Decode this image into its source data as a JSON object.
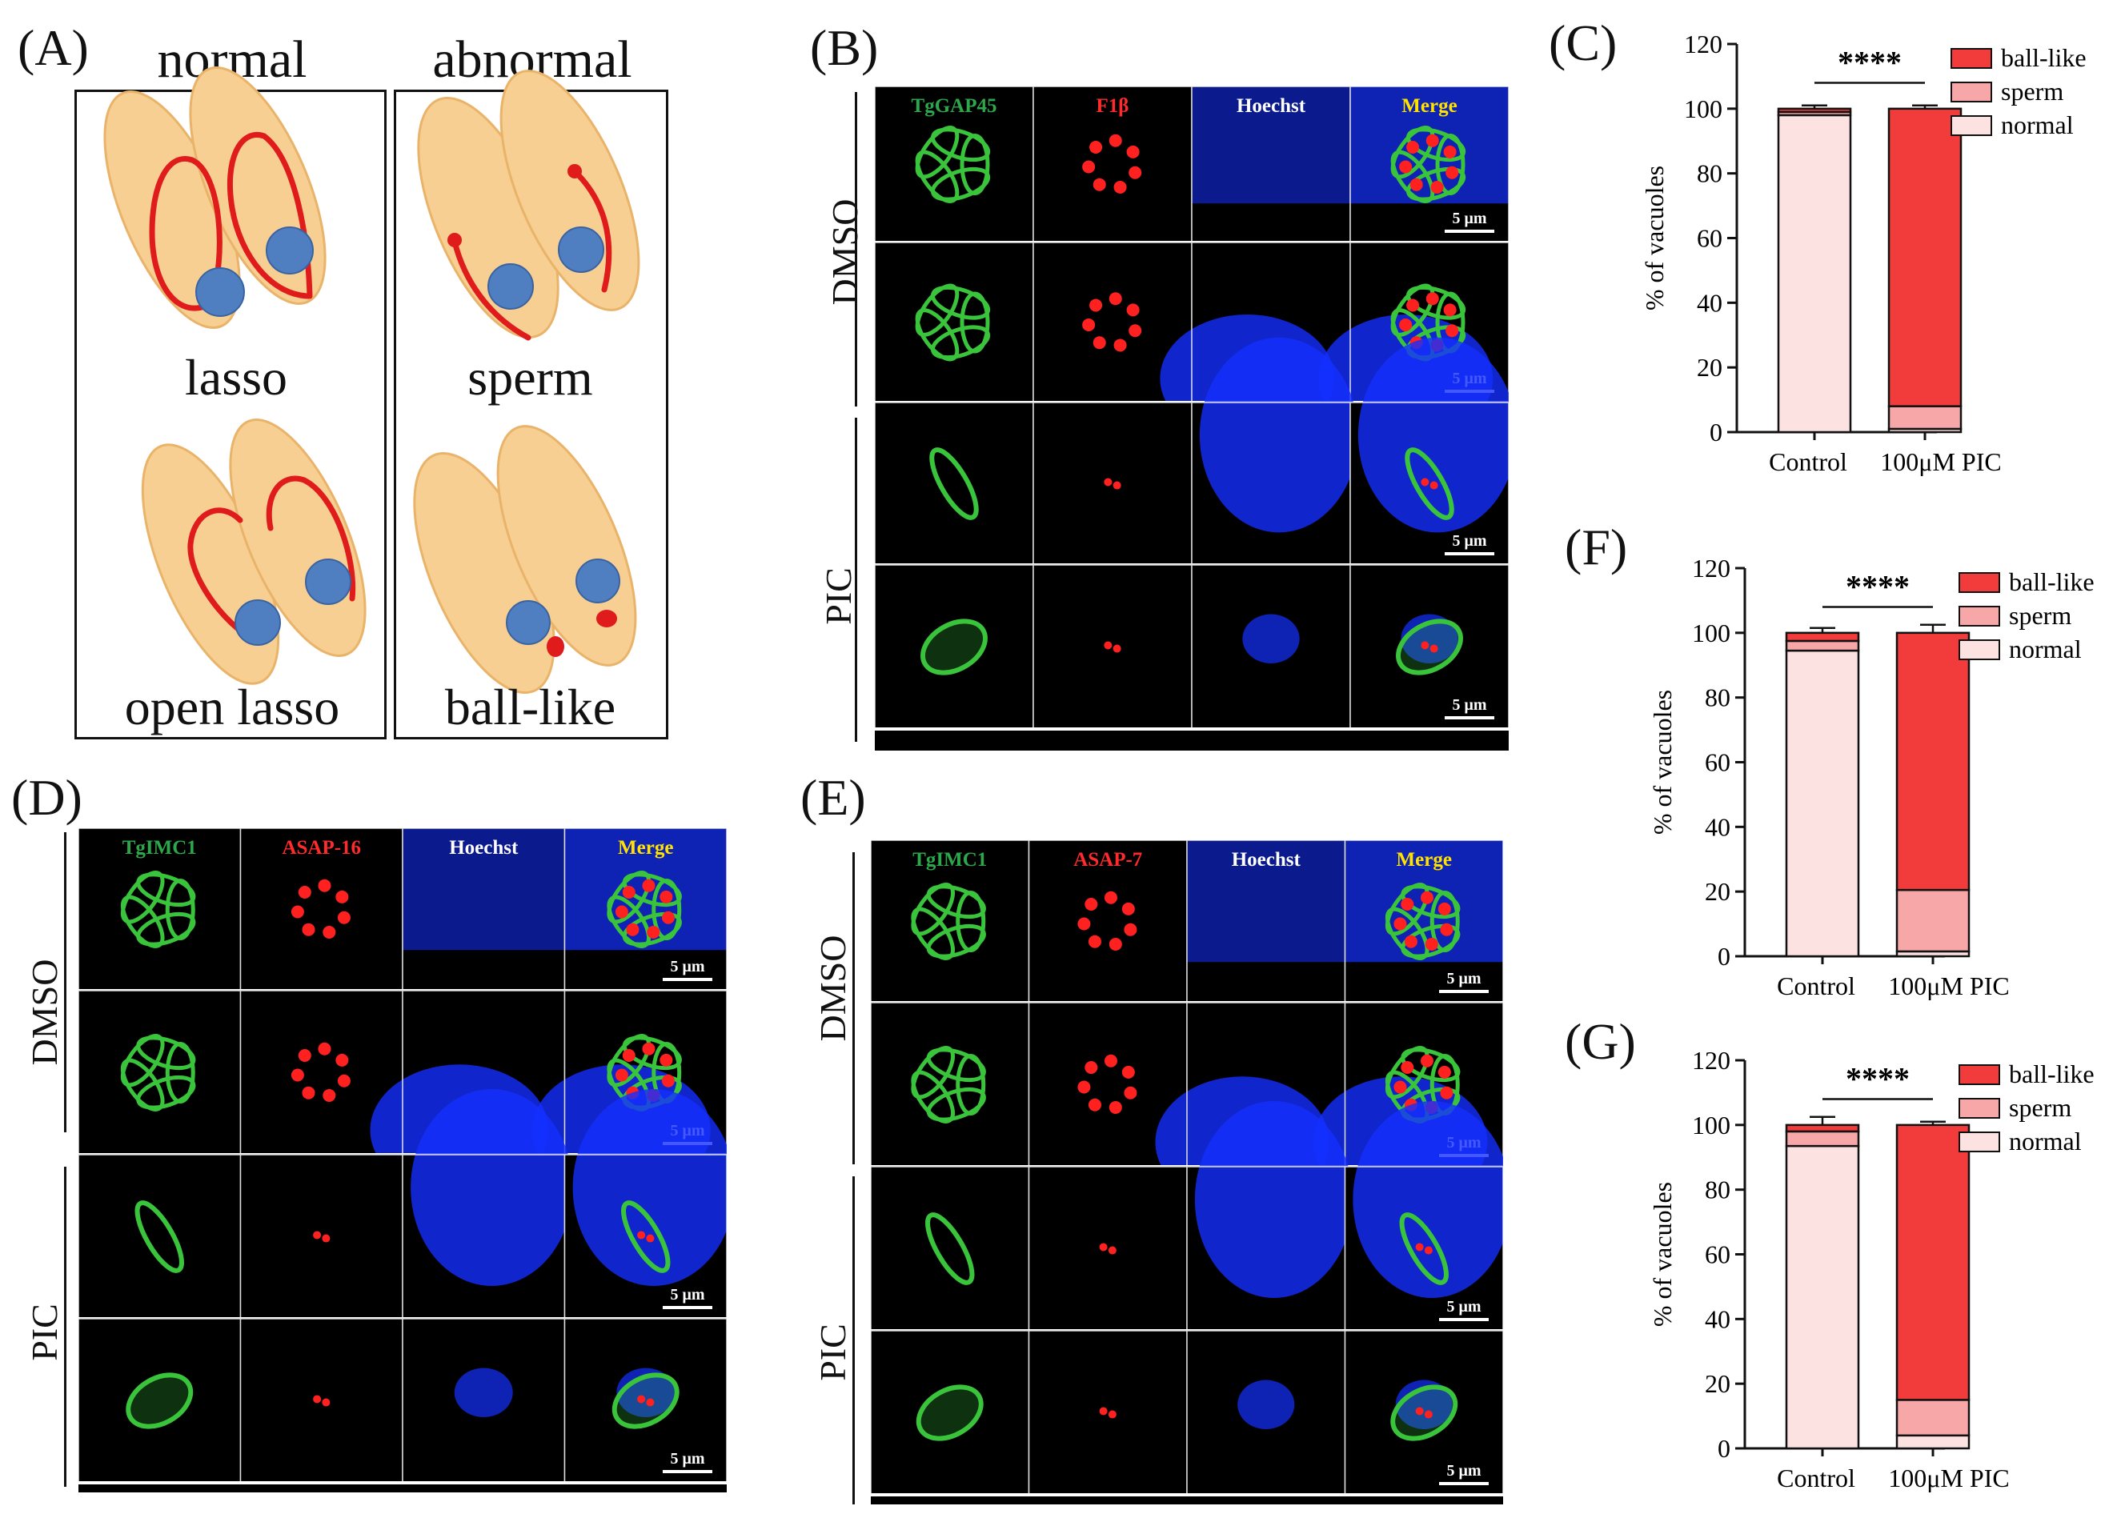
{
  "figure": {
    "panel_labels": {
      "A": "(A)",
      "B": "(B)",
      "C": "(C)",
      "D": "(D)",
      "E": "(E)",
      "F": "(F)",
      "G": "(G)"
    },
    "panel_a": {
      "headers": [
        "normal",
        "abnormal"
      ],
      "captions": [
        "lasso",
        "sperm",
        "open lasso",
        "ball-like"
      ]
    },
    "panel_b": {
      "channels": [
        "TgGAP45",
        "F1β",
        "Hoechst",
        "Merge"
      ],
      "groups": [
        "DMSO",
        "PIC"
      ],
      "scale": "5 μm"
    },
    "panel_d": {
      "channels": [
        "TgIMC1",
        "ASAP-16",
        "Hoechst",
        "Merge"
      ],
      "groups": [
        "DMSO",
        "PIC"
      ],
      "scale": "5 μm"
    },
    "panel_e": {
      "channels": [
        "TgIMC1",
        "ASAP-7",
        "Hoechst",
        "Merge"
      ],
      "groups": [
        "DMSO",
        "PIC"
      ],
      "scale": "5 μm"
    },
    "colors": {
      "cell": "#f7cf92",
      "cell_edge": "#e9b46a",
      "marker": "#e01b1b",
      "nucleus": "#4f7fc0",
      "green": "#39c43b",
      "red": "#ff2020",
      "blue": "#1430ff",
      "ball_like": "#f23b3b",
      "sperm": "#f7a7a7",
      "normal": "#fde2e2",
      "label_green": "#2ca84a",
      "label_red": "#ff2a2a",
      "label_yellow": "#ffe200",
      "label_white": "#ffffff"
    }
  },
  "chart_data": [
    {
      "id": "C",
      "type": "bar",
      "stacked": true,
      "categories": [
        "Control",
        "100μM PIC"
      ],
      "series": [
        {
          "name": "normal",
          "values": [
            98,
            1
          ]
        },
        {
          "name": "sperm",
          "values": [
            1,
            7
          ]
        },
        {
          "name": "ball-like",
          "values": [
            1,
            92
          ]
        }
      ],
      "errors": {
        "normal": [
          0,
          2
        ],
        "sperm": [
          0,
          2.5
        ],
        "ball-like": [
          1,
          1
        ]
      },
      "ylabel": "% of vacuoles",
      "ylim": [
        0,
        120
      ],
      "yticks": [
        0,
        20,
        40,
        60,
        80,
        100,
        120
      ],
      "significance": "****",
      "legend": "top-right",
      "grid": false
    },
    {
      "id": "F",
      "type": "bar",
      "stacked": true,
      "categories": [
        "Control",
        "100μM PIC"
      ],
      "series": [
        {
          "name": "normal",
          "values": [
            94.5,
            1.5
          ]
        },
        {
          "name": "sperm",
          "values": [
            3,
            19
          ]
        },
        {
          "name": "ball-like",
          "values": [
            2.5,
            79.5
          ]
        }
      ],
      "errors": {
        "normal": [
          3,
          1.5
        ],
        "sperm": [
          1.5,
          3.5
        ],
        "ball-like": [
          1.5,
          2.5
        ]
      },
      "ylabel": "% of vacuoles",
      "ylim": [
        0,
        120
      ],
      "yticks": [
        0,
        20,
        40,
        60,
        80,
        100,
        120
      ],
      "significance": "****",
      "legend": "top-right",
      "grid": false
    },
    {
      "id": "G",
      "type": "bar",
      "stacked": true,
      "categories": [
        "Control",
        "100μM PIC"
      ],
      "series": [
        {
          "name": "normal",
          "values": [
            93.5,
            4
          ]
        },
        {
          "name": "sperm",
          "values": [
            4.5,
            11
          ]
        },
        {
          "name": "ball-like",
          "values": [
            2,
            85
          ]
        }
      ],
      "errors": {
        "normal": [
          3.5,
          2
        ],
        "sperm": [
          1.5,
          3
        ],
        "ball-like": [
          2.5,
          1
        ]
      },
      "ylabel": "% of vacuoles",
      "ylim": [
        0,
        120
      ],
      "yticks": [
        0,
        20,
        40,
        60,
        80,
        100,
        120
      ],
      "significance": "****",
      "legend": "top-right",
      "grid": false
    }
  ]
}
